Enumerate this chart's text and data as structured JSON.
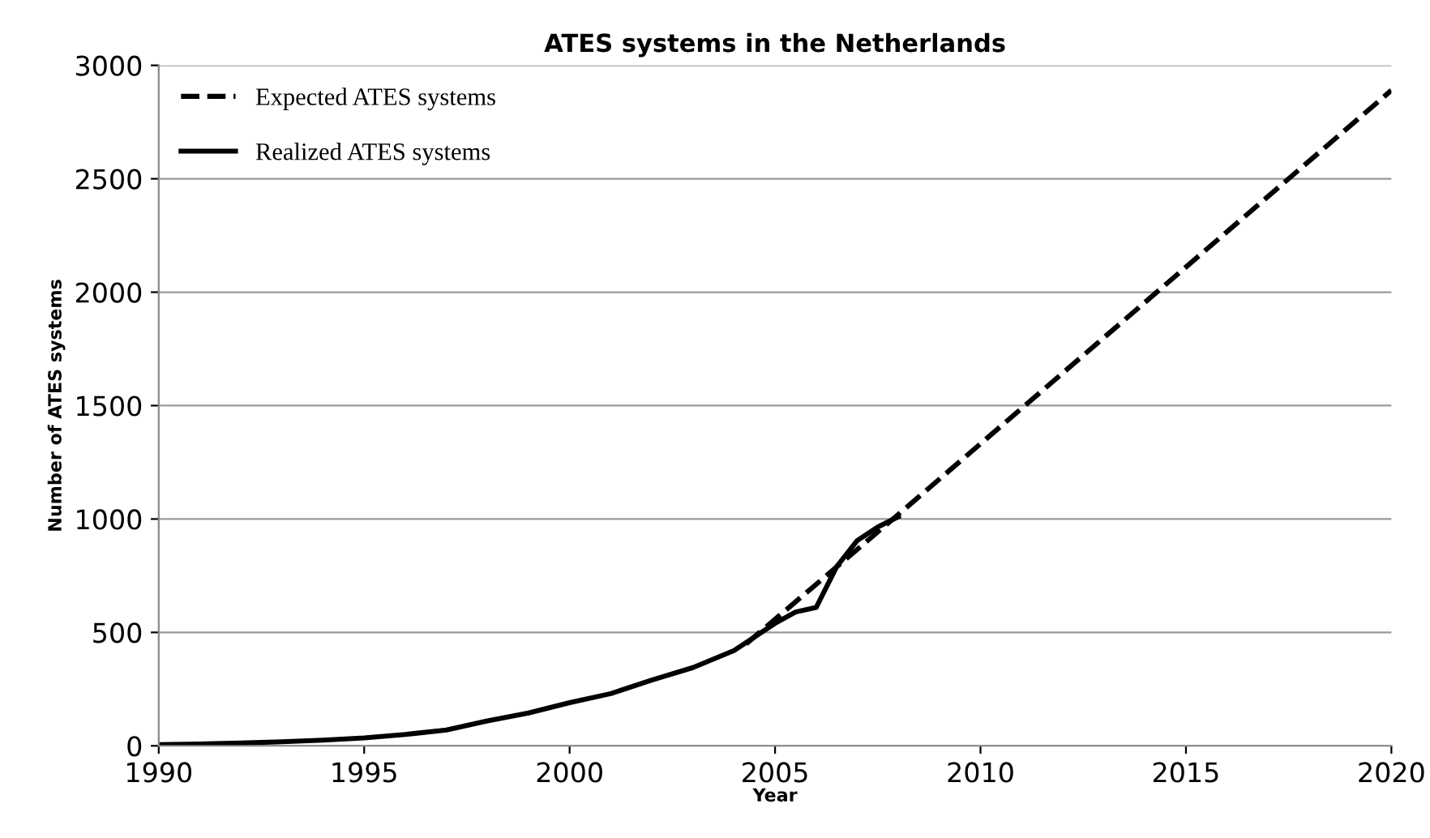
{
  "chart_data": {
    "type": "line",
    "title": "ATES systems in the Netherlands",
    "xlabel": "Year",
    "ylabel": "Number of ATES systems",
    "series": [
      {
        "name": "Expected ATES systems",
        "color": "#000000",
        "line_style": "dashed",
        "x": [
          2004.3,
          2008,
          2020
        ],
        "values": [
          450,
          1020,
          2890
        ]
      },
      {
        "name": "Realized ATES systems",
        "color": "#000000",
        "line_style": "solid",
        "x": [
          1990,
          1991,
          1992,
          1993,
          1994,
          1995,
          1996,
          1997,
          1998,
          1999,
          2000,
          2001,
          2002,
          2003,
          2004,
          2004.5,
          2005,
          2005.5,
          2006,
          2006.5,
          2007,
          2007.5,
          2008
        ],
        "values": [
          5,
          8,
          12,
          18,
          25,
          35,
          50,
          70,
          110,
          145,
          190,
          230,
          290,
          345,
          420,
          480,
          540,
          590,
          610,
          790,
          905,
          965,
          1010
        ]
      }
    ],
    "xlim": [
      1990,
      2020
    ],
    "xticks": [
      1990,
      1995,
      2000,
      2005,
      2010,
      2015,
      2020
    ],
    "ylim": [
      0,
      3000
    ],
    "yticks": [
      0,
      500,
      1000,
      1500,
      2000,
      2500,
      3000
    ],
    "grid": "y",
    "legend": "top left",
    "marker": "none"
  }
}
